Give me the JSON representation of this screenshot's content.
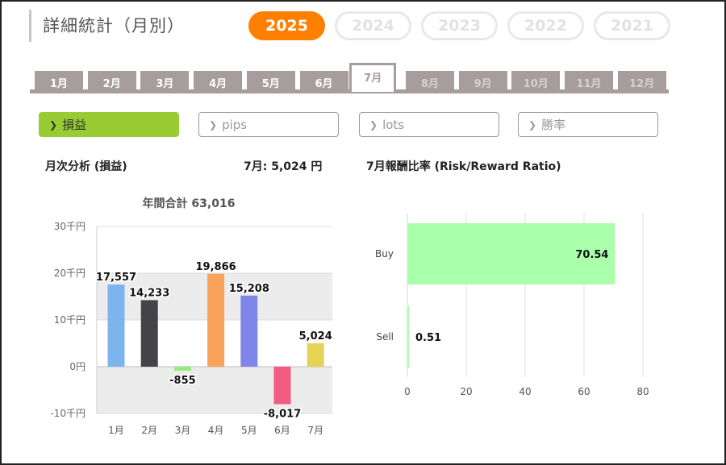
{
  "header": {
    "title": "詳細統計（月別）"
  },
  "years": [
    {
      "label": "2025",
      "active": true
    },
    {
      "label": "2024",
      "active": false
    },
    {
      "label": "2023",
      "active": false
    },
    {
      "label": "2022",
      "active": false
    },
    {
      "label": "2021",
      "active": false
    }
  ],
  "months": [
    {
      "label": "1月",
      "state": "past"
    },
    {
      "label": "2月",
      "state": "past"
    },
    {
      "label": "3月",
      "state": "past"
    },
    {
      "label": "4月",
      "state": "past"
    },
    {
      "label": "5月",
      "state": "past"
    },
    {
      "label": "6月",
      "state": "past"
    },
    {
      "label": "7月",
      "state": "active"
    },
    {
      "label": "8月",
      "state": "future"
    },
    {
      "label": "9月",
      "state": "future"
    },
    {
      "label": "10月",
      "state": "future"
    },
    {
      "label": "11月",
      "state": "future"
    },
    {
      "label": "12月",
      "state": "future"
    }
  ],
  "metrics": [
    {
      "label": "損益",
      "active": true
    },
    {
      "label": "pips",
      "active": false
    },
    {
      "label": "lots",
      "active": false
    },
    {
      "label": "勝率",
      "active": false
    }
  ],
  "monthly": {
    "title": "月次分析 (損益)",
    "current_value": "7月:  5,024 円",
    "annual_total": "年間合計 63,016"
  },
  "rr": {
    "title": "7月報酬比率 (Risk/Reward Ratio)"
  },
  "colors": {
    "accent": "#ff8000",
    "active_metric": "#99cc33",
    "month_tab": "#a69d9c"
  },
  "chart_data": [
    {
      "type": "bar",
      "title": "年間合計 63,016",
      "categories": [
        "1月",
        "2月",
        "3月",
        "4月",
        "5月",
        "6月",
        "7月"
      ],
      "values": [
        17557,
        14233,
        -855,
        19866,
        15208,
        -8017,
        5024
      ],
      "value_labels": [
        "17,557",
        "14,233",
        "-855",
        "19,866",
        "15,208",
        "-8,017",
        "5,024"
      ],
      "bar_colors": [
        "#7cb5ec",
        "#434348",
        "#90ed7d",
        "#f7a35c",
        "#8085e9",
        "#f15c80",
        "#e4d354"
      ],
      "yticks": [
        "30千円",
        "20千円",
        "10千円",
        "0円",
        "-10千円"
      ],
      "ylim": [
        -10000,
        30000
      ],
      "grid": true
    },
    {
      "type": "bar",
      "orientation": "horizontal",
      "categories": [
        "Buy",
        "Sell"
      ],
      "values": [
        70.54,
        0.51
      ],
      "value_labels": [
        "70.54",
        "0.51"
      ],
      "bar_colors": [
        "#aaffaa",
        "#aaffaa"
      ],
      "xticks": [
        "0",
        "20",
        "40",
        "60",
        "80"
      ],
      "xlim": [
        0,
        80
      ],
      "grid": true
    }
  ]
}
